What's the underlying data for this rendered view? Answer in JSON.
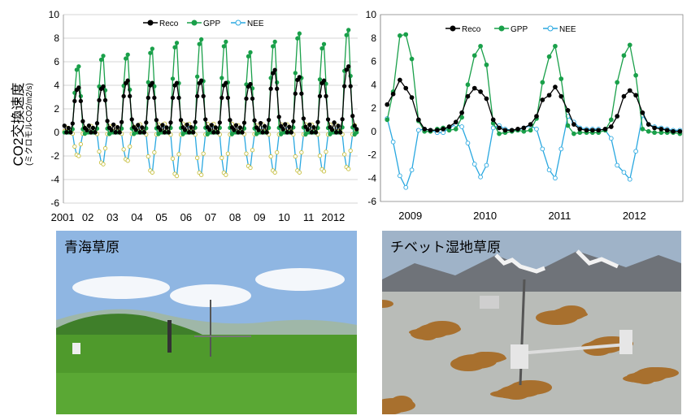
{
  "y_axis_label": {
    "main": "CO2交換速度",
    "sub": "(ミクロモルCO2/m2/s)"
  },
  "chart_data": [
    {
      "type": "line",
      "title": "",
      "xlabel": "",
      "ylabel": "CO2交換速度 (ミクロモルCO2/m2/s)",
      "ylim": [
        -6,
        10
      ],
      "yticks": [
        -6,
        -4,
        -2,
        0,
        2,
        4,
        6,
        8,
        10
      ],
      "x_range": [
        2001,
        2013
      ],
      "x_tick_labels": [
        "2001",
        "02",
        "03",
        "04",
        "05",
        "06",
        "07",
        "08",
        "09",
        "10",
        "11",
        "2012"
      ],
      "grid": "horizontal",
      "legend": "top-center",
      "peaks": [
        {
          "year": 2001,
          "reco": 3.8,
          "gpp": 5.6,
          "nee": -2.0
        },
        {
          "year": 2002,
          "reco": 3.9,
          "gpp": 6.5,
          "nee": -2.7
        },
        {
          "year": 2003,
          "reco": 4.4,
          "gpp": 6.6,
          "nee": -2.4
        },
        {
          "year": 2004,
          "reco": 4.2,
          "gpp": 7.1,
          "nee": -3.4
        },
        {
          "year": 2005,
          "reco": 4.2,
          "gpp": 7.6,
          "nee": -3.7
        },
        {
          "year": 2006,
          "reco": 4.4,
          "gpp": 7.9,
          "nee": -3.6
        },
        {
          "year": 2007,
          "reco": 4.2,
          "gpp": 7.7,
          "nee": -3.6
        },
        {
          "year": 2008,
          "reco": 4.1,
          "gpp": 6.8,
          "nee": -3.0
        },
        {
          "year": 2009,
          "reco": 5.3,
          "gpp": 7.7,
          "nee": -3.4
        },
        {
          "year": 2010,
          "reco": 4.7,
          "gpp": 8.4,
          "nee": -3.4
        },
        {
          "year": 2011,
          "reco": 4.4,
          "gpp": 7.5,
          "nee": -3.3
        },
        {
          "year": 2012,
          "reco": 5.6,
          "gpp": 8.7,
          "nee": -3.1
        }
      ],
      "series": [
        {
          "name": "Reco",
          "color": "#000000",
          "marker": "filled-circle"
        },
        {
          "name": "GPP",
          "color": "#1aa04a",
          "marker": "filled-circle"
        },
        {
          "name": "NEE",
          "color": "#2aa8e0",
          "marker": "open-circle"
        }
      ]
    },
    {
      "type": "line",
      "title": "",
      "xlabel": "",
      "ylabel": "",
      "ylim": [
        -6,
        10
      ],
      "yticks": [
        -6,
        -4,
        -2,
        0,
        2,
        4,
        6,
        8,
        10
      ],
      "x_range": [
        2008.7,
        2012.75
      ],
      "x_tick_labels": [
        "2009",
        "2010",
        "2011",
        "2012"
      ],
      "grid": "none",
      "legend": "top-center",
      "series": [
        {
          "name": "Reco",
          "color": "#000000",
          "marker": "filled-circle",
          "x": [
            2008.79,
            2008.87,
            2008.96,
            2009.04,
            2009.12,
            2009.21,
            2009.29,
            2009.37,
            2009.46,
            2009.54,
            2009.62,
            2009.71,
            2009.79,
            2009.87,
            2009.96,
            2010.04,
            2010.12,
            2010.21,
            2010.29,
            2010.37,
            2010.46,
            2010.54,
            2010.62,
            2010.71,
            2010.79,
            2010.87,
            2010.96,
            2011.04,
            2011.12,
            2011.21,
            2011.29,
            2011.37,
            2011.46,
            2011.54,
            2011.62,
            2011.71,
            2011.79,
            2011.87,
            2011.96,
            2012.04,
            2012.12,
            2012.21,
            2012.29,
            2012.37,
            2012.46,
            2012.54,
            2012.62,
            2012.71
          ],
          "y": [
            2.3,
            3.2,
            4.4,
            3.7,
            2.9,
            1.0,
            0.2,
            0.1,
            0.1,
            0.2,
            0.4,
            0.8,
            1.6,
            3.0,
            3.7,
            3.4,
            2.8,
            1.0,
            0.3,
            0.1,
            0.1,
            0.2,
            0.3,
            0.6,
            1.3,
            2.7,
            3.1,
            3.8,
            3.0,
            1.8,
            0.6,
            0.2,
            0.1,
            0.1,
            0.1,
            0.2,
            0.4,
            1.3,
            3.0,
            3.5,
            3.1,
            1.6,
            0.6,
            0.3,
            0.2,
            0.1,
            0.0,
            0.0
          ]
        },
        {
          "name": "GPP",
          "color": "#1aa04a",
          "marker": "filled-circle",
          "x": [
            2008.79,
            2008.87,
            2008.96,
            2009.04,
            2009.12,
            2009.21,
            2009.29,
            2009.37,
            2009.46,
            2009.54,
            2009.62,
            2009.71,
            2009.79,
            2009.87,
            2009.96,
            2010.04,
            2010.12,
            2010.21,
            2010.29,
            2010.37,
            2010.46,
            2010.54,
            2010.62,
            2010.71,
            2010.79,
            2010.87,
            2010.96,
            2011.04,
            2011.12,
            2011.21,
            2011.29,
            2011.37,
            2011.46,
            2011.54,
            2011.62,
            2011.71,
            2011.79,
            2011.87,
            2011.96,
            2012.04,
            2012.12,
            2012.21,
            2012.29,
            2012.37,
            2012.46,
            2012.54,
            2012.62,
            2012.71
          ],
          "y": [
            1.0,
            3.4,
            8.2,
            8.3,
            6.2,
            0.9,
            0.0,
            0.0,
            0.2,
            0.3,
            0.1,
            0.2,
            1.2,
            4.0,
            6.5,
            7.3,
            5.7,
            0.7,
            -0.2,
            -0.1,
            0.0,
            0.1,
            0.0,
            0.1,
            1.1,
            4.2,
            6.4,
            7.3,
            4.5,
            0.5,
            -0.2,
            -0.1,
            -0.1,
            -0.1,
            -0.1,
            0.1,
            1.0,
            4.2,
            6.5,
            7.4,
            4.8,
            0.2,
            0.0,
            -0.1,
            -0.1,
            -0.1,
            -0.1,
            -0.2
          ]
        },
        {
          "name": "NEE",
          "color": "#2aa8e0",
          "marker": "open-circle",
          "x": [
            2008.79,
            2008.87,
            2008.96,
            2009.04,
            2009.12,
            2009.21,
            2009.29,
            2009.37,
            2009.46,
            2009.54,
            2009.62,
            2009.71,
            2009.79,
            2009.87,
            2009.96,
            2010.04,
            2010.12,
            2010.21,
            2010.29,
            2010.37,
            2010.46,
            2010.54,
            2010.62,
            2010.71,
            2010.79,
            2010.87,
            2010.96,
            2011.04,
            2011.12,
            2011.21,
            2011.29,
            2011.37,
            2011.46,
            2011.54,
            2011.62,
            2011.71,
            2011.79,
            2011.87,
            2011.96,
            2012.04,
            2012.12,
            2012.21,
            2012.29,
            2012.37,
            2012.46,
            2012.54,
            2012.62,
            2012.71
          ],
          "y": [
            1.1,
            -0.9,
            -3.8,
            -4.8,
            -3.3,
            0.1,
            0.2,
            0.1,
            -0.1,
            -0.1,
            0.3,
            0.6,
            0.4,
            -1.0,
            -2.8,
            -3.9,
            -2.9,
            0.3,
            0.5,
            0.2,
            0.1,
            0.1,
            0.3,
            0.5,
            0.2,
            -1.5,
            -3.3,
            -4.0,
            -1.5,
            1.3,
            0.8,
            0.3,
            0.2,
            0.2,
            0.2,
            0.1,
            -0.6,
            -2.9,
            -3.5,
            -4.1,
            -1.7,
            1.4,
            0.6,
            0.4,
            0.3,
            0.2,
            0.1,
            0.1
          ]
        }
      ]
    }
  ],
  "photos": [
    {
      "caption": "青海草原",
      "scene": "grassland",
      "sky": "#8fb6e2",
      "ground": "#4f9a2c"
    },
    {
      "caption": "チベット湿地草原",
      "scene": "wetland",
      "sky": "#9fb3c8",
      "ground": "#b9bcb8"
    }
  ]
}
